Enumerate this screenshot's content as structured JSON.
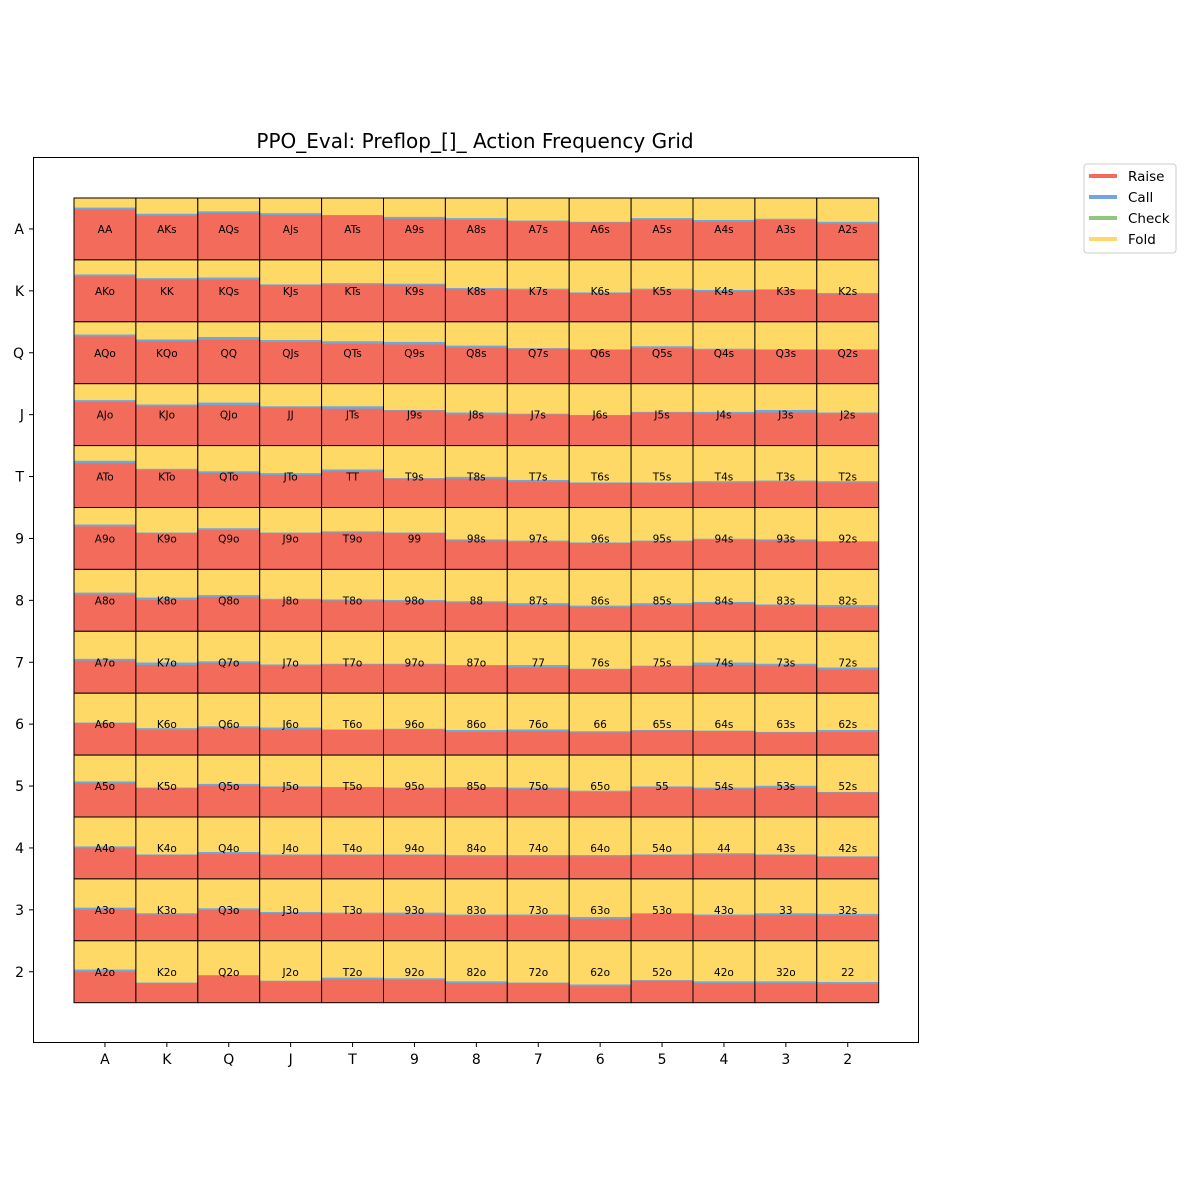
{
  "chart_data": {
    "type": "heatmap",
    "title": "PPO_Eval: Preflop_[]_ Action Frequency Grid",
    "xlabel": "",
    "ylabel": "",
    "ranks": [
      "A",
      "K",
      "Q",
      "J",
      "T",
      "9",
      "8",
      "7",
      "6",
      "5",
      "4",
      "3",
      "2"
    ],
    "legend": {
      "position": "top-right",
      "entries": [
        {
          "name": "Raise",
          "color": "#f26b5b"
        },
        {
          "name": "Call",
          "color": "#6fa8dc"
        },
        {
          "name": "Check",
          "color": "#93c47d"
        },
        {
          "name": "Fold",
          "color": "#ffd966"
        }
      ]
    },
    "actions": [
      "raise",
      "call",
      "check",
      "fold"
    ],
    "cells": [
      [
        [
          0.82,
          0.03,
          0,
          0.15
        ],
        [
          0.72,
          0.03,
          0,
          0.25
        ],
        [
          0.76,
          0.03,
          0,
          0.21
        ],
        [
          0.73,
          0.03,
          0,
          0.24
        ],
        [
          0.72,
          0.01,
          0,
          0.27
        ],
        [
          0.67,
          0.03,
          0,
          0.3
        ],
        [
          0.65,
          0.03,
          0,
          0.32
        ],
        [
          0.63,
          0.01,
          0,
          0.36
        ],
        [
          0.61,
          0.01,
          0,
          0.38
        ],
        [
          0.66,
          0.02,
          0,
          0.32
        ],
        [
          0.62,
          0.03,
          0,
          0.35
        ],
        [
          0.65,
          0.02,
          0,
          0.33
        ],
        [
          0.59,
          0.03,
          0,
          0.38
        ]
      ],
      [
        [
          0.74,
          0.03,
          0,
          0.23
        ],
        [
          0.69,
          0.02,
          0,
          0.29
        ],
        [
          0.69,
          0.03,
          0,
          0.28
        ],
        [
          0.6,
          0.01,
          0,
          0.39
        ],
        [
          0.61,
          0.02,
          0,
          0.37
        ],
        [
          0.6,
          0.02,
          0,
          0.38
        ],
        [
          0.53,
          0.02,
          0,
          0.45
        ],
        [
          0.52,
          0.02,
          0,
          0.46
        ],
        [
          0.47,
          0.01,
          0,
          0.52
        ],
        [
          0.52,
          0.02,
          0,
          0.46
        ],
        [
          0.5,
          0.02,
          0,
          0.48
        ],
        [
          0.52,
          0.01,
          0,
          0.47
        ],
        [
          0.45,
          0.02,
          0,
          0.53
        ]
      ],
      [
        [
          0.77,
          0.03,
          0,
          0.2
        ],
        [
          0.69,
          0.03,
          0,
          0.28
        ],
        [
          0.72,
          0.04,
          0,
          0.24
        ],
        [
          0.68,
          0.03,
          0,
          0.29
        ],
        [
          0.65,
          0.04,
          0,
          0.31
        ],
        [
          0.64,
          0.04,
          0,
          0.32
        ],
        [
          0.59,
          0.03,
          0,
          0.38
        ],
        [
          0.57,
          0.01,
          0,
          0.42
        ],
        [
          0.55,
          0.01,
          0,
          0.44
        ],
        [
          0.58,
          0.03,
          0,
          0.39
        ],
        [
          0.55,
          0.02,
          0,
          0.43
        ],
        [
          0.55,
          0.01,
          0,
          0.44
        ],
        [
          0.55,
          0.01,
          0,
          0.44
        ]
      ],
      [
        [
          0.71,
          0.03,
          0,
          0.26
        ],
        [
          0.64,
          0.03,
          0,
          0.33
        ],
        [
          0.66,
          0.04,
          0,
          0.3
        ],
        [
          0.62,
          0.02,
          0,
          0.36
        ],
        [
          0.6,
          0.04,
          0,
          0.36
        ],
        [
          0.57,
          0.01,
          0,
          0.42
        ],
        [
          0.51,
          0.03,
          0,
          0.46
        ],
        [
          0.51,
          0.01,
          0,
          0.48
        ],
        [
          0.49,
          0.01,
          0,
          0.5
        ],
        [
          0.54,
          0.01,
          0,
          0.45
        ],
        [
          0.52,
          0.03,
          0,
          0.45
        ],
        [
          0.54,
          0.04,
          0,
          0.42
        ],
        [
          0.52,
          0.02,
          0,
          0.46
        ]
      ],
      [
        [
          0.72,
          0.04,
          0,
          0.24
        ],
        [
          0.61,
          0.02,
          0,
          0.37
        ],
        [
          0.56,
          0.03,
          0,
          0.41
        ],
        [
          0.53,
          0.03,
          0,
          0.44
        ],
        [
          0.59,
          0.03,
          0,
          0.38
        ],
        [
          0.47,
          0.01,
          0,
          0.52
        ],
        [
          0.47,
          0.03,
          0,
          0.5
        ],
        [
          0.42,
          0.03,
          0,
          0.55
        ],
        [
          0.4,
          0.01,
          0,
          0.59
        ],
        [
          0.4,
          0.01,
          0,
          0.59
        ],
        [
          0.41,
          0.02,
          0,
          0.57
        ],
        [
          0.42,
          0.02,
          0,
          0.56
        ],
        [
          0.41,
          0.02,
          0,
          0.57
        ]
      ],
      [
        [
          0.7,
          0.03,
          0,
          0.27
        ],
        [
          0.59,
          0.01,
          0,
          0.4
        ],
        [
          0.64,
          0.03,
          0,
          0.33
        ],
        [
          0.59,
          0.01,
          0,
          0.4
        ],
        [
          0.6,
          0.02,
          0,
          0.38
        ],
        [
          0.59,
          0.01,
          0,
          0.4
        ],
        [
          0.47,
          0.02,
          0,
          0.51
        ],
        [
          0.45,
          0.02,
          0,
          0.53
        ],
        [
          0.43,
          0.01,
          0,
          0.56
        ],
        [
          0.46,
          0.01,
          0,
          0.53
        ],
        [
          0.48,
          0.02,
          0,
          0.5
        ],
        [
          0.47,
          0.02,
          0,
          0.51
        ],
        [
          0.45,
          0.01,
          0,
          0.54
        ]
      ],
      [
        [
          0.6,
          0.03,
          0,
          0.37
        ],
        [
          0.51,
          0.04,
          0,
          0.45
        ],
        [
          0.56,
          0.03,
          0,
          0.41
        ],
        [
          0.51,
          0.02,
          0,
          0.47
        ],
        [
          0.5,
          0.02,
          0,
          0.48
        ],
        [
          0.49,
          0.02,
          0,
          0.49
        ],
        [
          0.47,
          0.02,
          0,
          0.51
        ],
        [
          0.43,
          0.03,
          0,
          0.54
        ],
        [
          0.4,
          0.02,
          0,
          0.58
        ],
        [
          0.43,
          0.03,
          0,
          0.54
        ],
        [
          0.46,
          0.02,
          0,
          0.52
        ],
        [
          0.42,
          0.02,
          0,
          0.56
        ],
        [
          0.4,
          0.03,
          0,
          0.57
        ]
      ],
      [
        [
          0.53,
          0.03,
          0,
          0.44
        ],
        [
          0.46,
          0.04,
          0,
          0.5
        ],
        [
          0.49,
          0.03,
          0,
          0.48
        ],
        [
          0.45,
          0.02,
          0,
          0.53
        ],
        [
          0.47,
          0.01,
          0,
          0.52
        ],
        [
          0.47,
          0.01,
          0,
          0.52
        ],
        [
          0.45,
          0.01,
          0,
          0.54
        ],
        [
          0.42,
          0.04,
          0,
          0.54
        ],
        [
          0.39,
          0.01,
          0,
          0.6
        ],
        [
          0.44,
          0.01,
          0,
          0.55
        ],
        [
          0.46,
          0.04,
          0,
          0.5
        ],
        [
          0.45,
          0.03,
          0,
          0.52
        ],
        [
          0.39,
          0.03,
          0,
          0.58
        ]
      ],
      [
        [
          0.52,
          0.01,
          0,
          0.47
        ],
        [
          0.41,
          0.03,
          0,
          0.56
        ],
        [
          0.44,
          0.03,
          0,
          0.53
        ],
        [
          0.42,
          0.03,
          0,
          0.55
        ],
        [
          0.41,
          0.01,
          0,
          0.58
        ],
        [
          0.42,
          0.01,
          0,
          0.57
        ],
        [
          0.38,
          0.03,
          0,
          0.59
        ],
        [
          0.39,
          0.03,
          0,
          0.58
        ],
        [
          0.37,
          0.02,
          0,
          0.61
        ],
        [
          0.4,
          0.01,
          0,
          0.59
        ],
        [
          0.39,
          0.01,
          0,
          0.6
        ],
        [
          0.37,
          0.01,
          0,
          0.62
        ],
        [
          0.38,
          0.03,
          0,
          0.59
        ]
      ],
      [
        [
          0.55,
          0.03,
          0,
          0.42
        ],
        [
          0.47,
          0.01,
          0,
          0.52
        ],
        [
          0.51,
          0.03,
          0,
          0.46
        ],
        [
          0.49,
          0.01,
          0,
          0.5
        ],
        [
          0.48,
          0.01,
          0,
          0.51
        ],
        [
          0.47,
          0.01,
          0,
          0.52
        ],
        [
          0.47,
          0.02,
          0,
          0.51
        ],
        [
          0.46,
          0.02,
          0,
          0.52
        ],
        [
          0.41,
          0.02,
          0,
          0.57
        ],
        [
          0.49,
          0.01,
          0,
          0.5
        ],
        [
          0.46,
          0.02,
          0,
          0.52
        ],
        [
          0.48,
          0.03,
          0,
          0.49
        ],
        [
          0.4,
          0.01,
          0,
          0.59
        ]
      ],
      [
        [
          0.5,
          0.03,
          0,
          0.47
        ],
        [
          0.39,
          0.01,
          0,
          0.6
        ],
        [
          0.41,
          0.03,
          0,
          0.56
        ],
        [
          0.38,
          0.02,
          0,
          0.6
        ],
        [
          0.39,
          0.01,
          0,
          0.6
        ],
        [
          0.39,
          0.01,
          0,
          0.6
        ],
        [
          0.37,
          0.02,
          0,
          0.61
        ],
        [
          0.37,
          0.02,
          0,
          0.61
        ],
        [
          0.37,
          0.02,
          0,
          0.61
        ],
        [
          0.39,
          0.01,
          0,
          0.6
        ],
        [
          0.4,
          0.02,
          0,
          0.58
        ],
        [
          0.39,
          0.01,
          0,
          0.6
        ],
        [
          0.36,
          0.01,
          0,
          0.63
        ]
      ],
      [
        [
          0.51,
          0.03,
          0,
          0.46
        ],
        [
          0.43,
          0.02,
          0,
          0.55
        ],
        [
          0.5,
          0.03,
          0,
          0.47
        ],
        [
          0.45,
          0.02,
          0,
          0.53
        ],
        [
          0.44,
          0.02,
          0,
          0.54
        ],
        [
          0.43,
          0.03,
          0,
          0.54
        ],
        [
          0.41,
          0.02,
          0,
          0.57
        ],
        [
          0.41,
          0.02,
          0,
          0.57
        ],
        [
          0.36,
          0.03,
          0,
          0.61
        ],
        [
          0.44,
          0.01,
          0,
          0.55
        ],
        [
          0.41,
          0.02,
          0,
          0.57
        ],
        [
          0.42,
          0.03,
          0,
          0.55
        ],
        [
          0.41,
          0.03,
          0,
          0.56
        ]
      ],
      [
        [
          0.51,
          0.03,
          0,
          0.46
        ],
        [
          0.32,
          0.01,
          0,
          0.67
        ],
        [
          0.44,
          0.01,
          0,
          0.55
        ],
        [
          0.35,
          0.01,
          0,
          0.64
        ],
        [
          0.38,
          0.03,
          0,
          0.59
        ],
        [
          0.37,
          0.03,
          0,
          0.6
        ],
        [
          0.32,
          0.03,
          0,
          0.65
        ],
        [
          0.32,
          0.01,
          0,
          0.67
        ],
        [
          0.27,
          0.03,
          0,
          0.7
        ],
        [
          0.36,
          0.01,
          0,
          0.63
        ],
        [
          0.32,
          0.03,
          0,
          0.65
        ],
        [
          0.32,
          0.03,
          0,
          0.65
        ],
        [
          0.31,
          0.03,
          0,
          0.66
        ]
      ]
    ]
  }
}
